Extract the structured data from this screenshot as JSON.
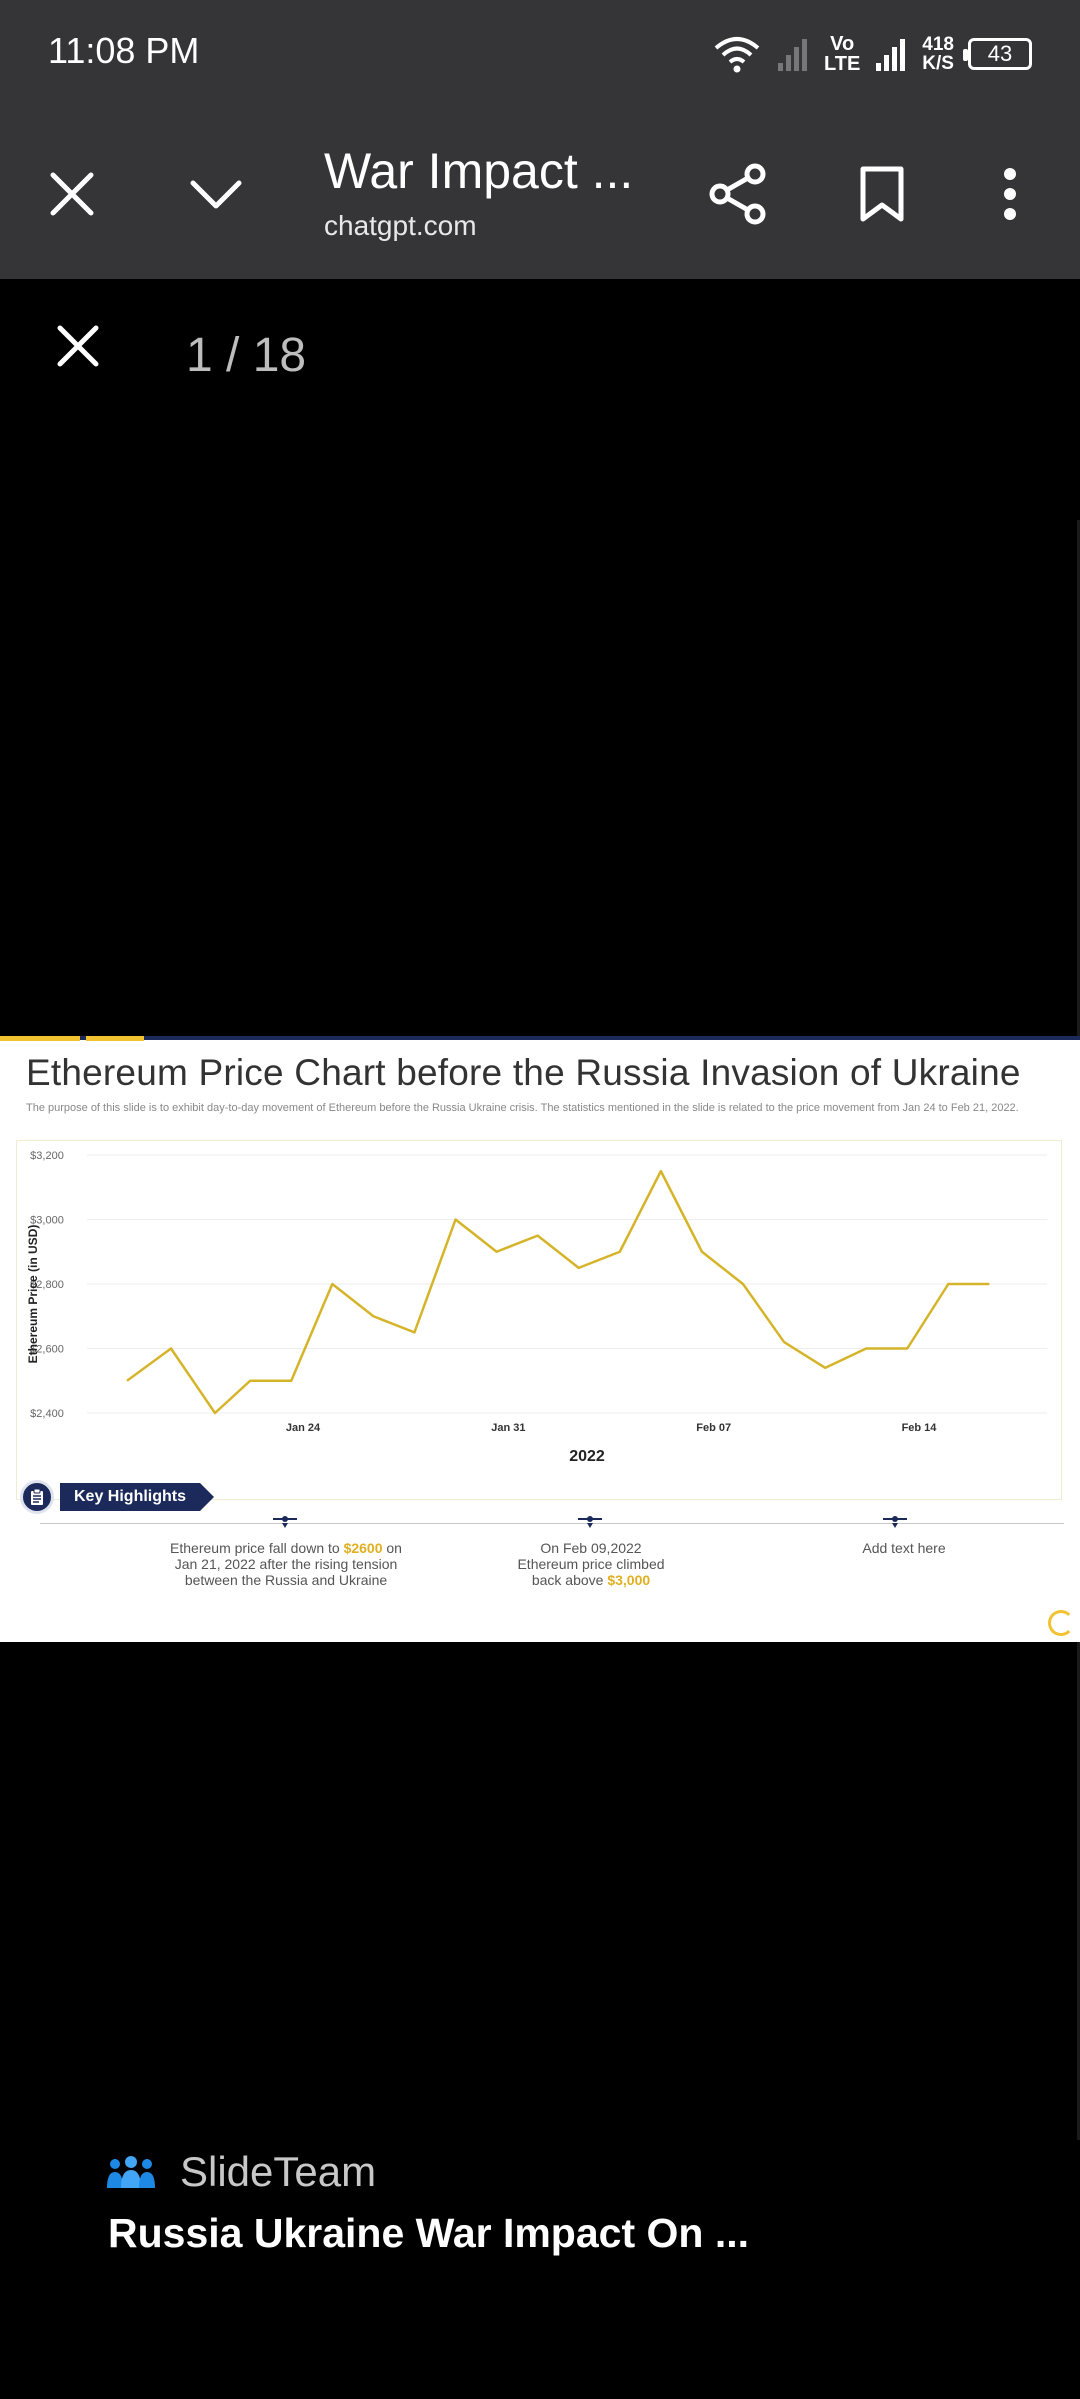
{
  "status_bar": {
    "time": "11:08 PM",
    "network_label_top": "Vo",
    "network_label_bottom": "LTE",
    "speed_value": "418",
    "speed_unit": "K/S",
    "battery": "43"
  },
  "toolbar": {
    "title": "War Impact ...",
    "url": "chatgpt.com"
  },
  "viewer": {
    "page_counter": "1 / 18"
  },
  "slide": {
    "title": "Ethereum Price Chart before the Russia Invasion of Ukraine",
    "subtitle": "The purpose of this slide is to exhibit day-to-day movement of Ethereum before the Russia Ukraine crisis. The statistics mentioned in the slide is related to the price movement from Jan 24 to Feb 21, 2022.",
    "key_highlights_label": "Key Highlights",
    "highlights": [
      {
        "before": "Ethereum price fall down to ",
        "highlight": "$2600",
        "after": " on Jan 21, 2022 after the rising tension between the Russia and Ukraine"
      },
      {
        "before": "On Feb 09,2022 Ethereum price climbed back above ",
        "highlight": "$3,000",
        "after": ""
      },
      {
        "before": "Add text here",
        "highlight": "",
        "after": ""
      }
    ]
  },
  "chart_data": {
    "type": "line",
    "title": "",
    "xlabel": "2022",
    "ylabel": "Ethereum Price (in USD)",
    "ylim": [
      2400,
      3200
    ],
    "yticks": [
      2400,
      2600,
      2800,
      3000,
      3200
    ],
    "ytick_labels": [
      "$2,400",
      "$2,600",
      "$2,800",
      "$3,000",
      "$3,200"
    ],
    "xticks": [
      {
        "index": 6,
        "label": "Jan 24"
      },
      {
        "index": 13,
        "label": "Jan 31"
      },
      {
        "index": 20,
        "label": "Feb 07"
      },
      {
        "index": 27,
        "label": "Feb 14"
      }
    ],
    "x_count": 31,
    "grid": true,
    "line_color": "#d6b42a",
    "series": [
      {
        "points": [
          [
            0,
            2500
          ],
          [
            1.5,
            2600
          ],
          [
            3,
            2400
          ],
          [
            4.2,
            2500
          ],
          [
            5.6,
            2500
          ],
          [
            7,
            2800
          ],
          [
            8.4,
            2700
          ],
          [
            9.8,
            2650
          ],
          [
            11.2,
            3000
          ],
          [
            12.6,
            2900
          ],
          [
            14,
            2950
          ],
          [
            15.4,
            2850
          ],
          [
            16.8,
            2900
          ],
          [
            18.2,
            3150
          ],
          [
            19.6,
            2900
          ],
          [
            21,
            2800
          ],
          [
            22.4,
            2620
          ],
          [
            23.8,
            2540
          ],
          [
            25.2,
            2600
          ],
          [
            26.6,
            2600
          ],
          [
            28,
            2800
          ],
          [
            29.4,
            2800
          ]
        ]
      }
    ]
  },
  "source": {
    "name": "SlideTeam",
    "document_title": "Russia Ukraine War Impact On ..."
  }
}
